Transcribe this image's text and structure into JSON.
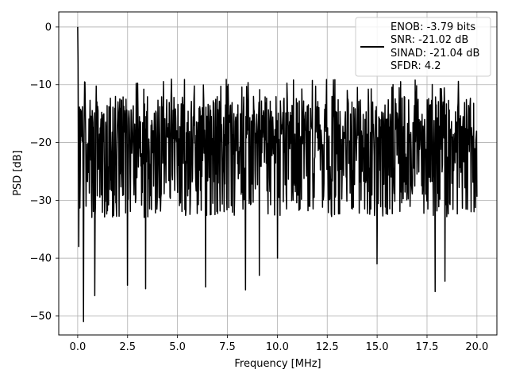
{
  "chart_data": {
    "type": "line",
    "title": "",
    "xlabel": "Frequency [MHz]",
    "ylabel": "PSD [dB]",
    "xlim": [
      -0.95,
      21.0
    ],
    "ylim": [
      -53.3,
      2.6
    ],
    "xticks": [
      0.0,
      2.5,
      5.0,
      7.5,
      10.0,
      12.5,
      15.0,
      17.5,
      20.0
    ],
    "xtick_labels": [
      "0.0",
      "2.5",
      "5.0",
      "7.5",
      "10.0",
      "12.5",
      "15.0",
      "17.5",
      "20.0"
    ],
    "yticks": [
      0,
      -10,
      -20,
      -30,
      -40,
      -50
    ],
    "ytick_labels": [
      "0",
      "−10",
      "−20",
      "−30",
      "−40",
      "−50"
    ],
    "grid": true,
    "legend_position": "top-right",
    "line_color": "#000000",
    "legend_entries": [
      "ENOB: -3.79 bits",
      "SNR: -21.02 dB",
      "SINAD: -21.04 dB",
      "SFDR: 4.2"
    ],
    "series": [
      {
        "x_start": 0.0,
        "x_end": 20.0,
        "num_points": 1100,
        "peaks": [
          {
            "x": 0.0,
            "y": 0.0
          },
          {
            "x": 0.02,
            "y": -6.5
          },
          {
            "x": 0.3,
            "y": -51.0
          }
        ],
        "typical_max": -10,
        "typical_min": -34,
        "notable_dips": [
          {
            "x": 0.05,
            "y": -38.0
          },
          {
            "x": 0.85,
            "y": -46.5
          },
          {
            "x": 2.5,
            "y": -44.7
          },
          {
            "x": 3.4,
            "y": -45.3
          },
          {
            "x": 6.4,
            "y": -45.0
          },
          {
            "x": 8.4,
            "y": -45.5
          },
          {
            "x": 9.1,
            "y": -43.0
          },
          {
            "x": 17.9,
            "y": -45.8
          },
          {
            "x": 18.4,
            "y": -44.0
          },
          {
            "x": 15.0,
            "y": -41.0
          },
          {
            "x": 10.0,
            "y": -40.0
          }
        ]
      }
    ]
  }
}
